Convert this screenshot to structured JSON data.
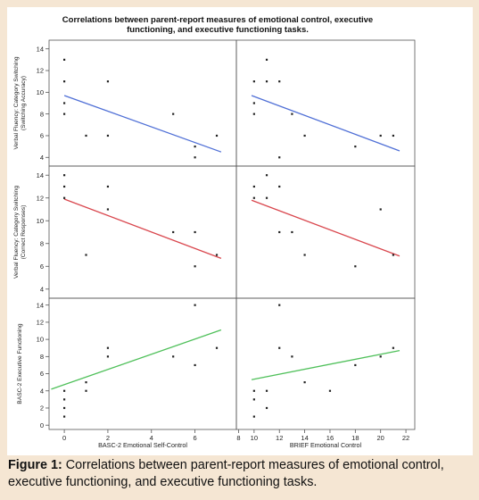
{
  "chart_data": {
    "type": "scatter",
    "title": "Correlations between parent-report measures of emotional control, executive functioning, and executive functioning tasks.",
    "layout": "3x2 scatterplot matrix with linear fit lines",
    "x_panels": [
      {
        "xlabel": "BASC-2 Emotional Self-Control",
        "xticks": [
          "0",
          "2",
          "4",
          "6",
          "8"
        ],
        "xlim": [
          -0.7,
          7.9
        ]
      },
      {
        "xlabel": "BRIEF Emotional Control",
        "xticks": [
          "10",
          "12",
          "14",
          "16",
          "18",
          "20",
          "22"
        ],
        "xlim": [
          8.6,
          22.7
        ]
      }
    ],
    "rows": [
      {
        "ylabel": "Verbal Fluency: Category Switching (Switching Accuracy)",
        "yticks": [
          "4",
          "6",
          "8",
          "10",
          "12",
          "14"
        ],
        "ylim": [
          3.2,
          14.8
        ],
        "fit_color": "#4f6fd6",
        "points": [
          [
            {
              "x": 0,
              "y": 13
            },
            {
              "x": 0,
              "y": 11
            },
            {
              "x": 0,
              "y": 9
            },
            {
              "x": 0,
              "y": 8
            },
            {
              "x": 1,
              "y": 6
            },
            {
              "x": 2,
              "y": 11
            },
            {
              "x": 2,
              "y": 6
            },
            {
              "x": 5,
              "y": 8
            },
            {
              "x": 6,
              "y": 5
            },
            {
              "x": 6,
              "y": 4
            },
            {
              "x": 7,
              "y": 6
            }
          ],
          [
            {
              "x": 10,
              "y": 11
            },
            {
              "x": 10,
              "y": 9
            },
            {
              "x": 10,
              "y": 8
            },
            {
              "x": 11,
              "y": 13
            },
            {
              "x": 11,
              "y": 11
            },
            {
              "x": 12,
              "y": 11
            },
            {
              "x": 12,
              "y": 4
            },
            {
              "x": 13,
              "y": 8
            },
            {
              "x": 14,
              "y": 6
            },
            {
              "x": 18,
              "y": 5
            },
            {
              "x": 20,
              "y": 6
            },
            {
              "x": 21,
              "y": 6
            }
          ]
        ],
        "fits": [
          {
            "x1": 0,
            "y1": 9.7,
            "x2": 7.2,
            "y2": 4.5
          },
          {
            "x1": 9.8,
            "y1": 9.7,
            "x2": 21.5,
            "y2": 4.6
          }
        ]
      },
      {
        "ylabel": "Verbal Fluency: Category Switching (Correct Responses)",
        "yticks": [
          "4",
          "6",
          "8",
          "10",
          "12",
          "14"
        ],
        "ylim": [
          3.2,
          14.8
        ],
        "fit_color": "#d9464d",
        "points": [
          [
            {
              "x": 0,
              "y": 14
            },
            {
              "x": 0,
              "y": 13
            },
            {
              "x": 0,
              "y": 12
            },
            {
              "x": 1,
              "y": 7
            },
            {
              "x": 2,
              "y": 13
            },
            {
              "x": 2,
              "y": 11
            },
            {
              "x": 5,
              "y": 9
            },
            {
              "x": 6,
              "y": 9
            },
            {
              "x": 6,
              "y": 6
            },
            {
              "x": 7,
              "y": 7
            }
          ],
          [
            {
              "x": 10,
              "y": 13
            },
            {
              "x": 10,
              "y": 12
            },
            {
              "x": 11,
              "y": 14
            },
            {
              "x": 11,
              "y": 12
            },
            {
              "x": 12,
              "y": 13
            },
            {
              "x": 12,
              "y": 9
            },
            {
              "x": 13,
              "y": 9
            },
            {
              "x": 14,
              "y": 7
            },
            {
              "x": 18,
              "y": 6
            },
            {
              "x": 20,
              "y": 11
            },
            {
              "x": 21,
              "y": 7
            }
          ]
        ],
        "fits": [
          {
            "x1": 0,
            "y1": 11.9,
            "x2": 7.2,
            "y2": 6.7
          },
          {
            "x1": 9.8,
            "y1": 11.8,
            "x2": 21.5,
            "y2": 6.9
          }
        ]
      },
      {
        "ylabel": "BASC-2 Executive Functioning",
        "yticks": [
          "0",
          "2",
          "4",
          "6",
          "8",
          "10",
          "12",
          "14"
        ],
        "ylim": [
          -0.5,
          14.8
        ],
        "fit_color": "#4fc05a",
        "points": [
          [
            {
              "x": 0,
              "y": 4
            },
            {
              "x": 0,
              "y": 3
            },
            {
              "x": 0,
              "y": 2
            },
            {
              "x": 0,
              "y": 1
            },
            {
              "x": 1,
              "y": 5
            },
            {
              "x": 1,
              "y": 4
            },
            {
              "x": 2,
              "y": 9
            },
            {
              "x": 2,
              "y": 8
            },
            {
              "x": 5,
              "y": 8
            },
            {
              "x": 6,
              "y": 14
            },
            {
              "x": 6,
              "y": 7
            },
            {
              "x": 7,
              "y": 9
            }
          ],
          [
            {
              "x": 10,
              "y": 4
            },
            {
              "x": 10,
              "y": 3
            },
            {
              "x": 10,
              "y": 1
            },
            {
              "x": 11,
              "y": 4
            },
            {
              "x": 11,
              "y": 2
            },
            {
              "x": 12,
              "y": 14
            },
            {
              "x": 12,
              "y": 9
            },
            {
              "x": 13,
              "y": 8
            },
            {
              "x": 14,
              "y": 5
            },
            {
              "x": 16,
              "y": 4
            },
            {
              "x": 18,
              "y": 7
            },
            {
              "x": 20,
              "y": 8
            },
            {
              "x": 21,
              "y": 9
            }
          ]
        ],
        "fits": [
          {
            "x1": -0.6,
            "y1": 4.2,
            "x2": 7.2,
            "y2": 11.1
          },
          {
            "x1": 9.8,
            "y1": 5.3,
            "x2": 21.5,
            "y2": 8.7
          }
        ]
      }
    ],
    "grid": false,
    "legend": "none"
  },
  "caption": {
    "label": "Figure 1:",
    "text": " Correlations between parent-report measures of emotional control, executive functioning, and executive functioning tasks."
  },
  "colors": {
    "background": "#f5e6d3",
    "plot_background": "#ffffff",
    "frame": "#555555",
    "points": "#222222"
  }
}
